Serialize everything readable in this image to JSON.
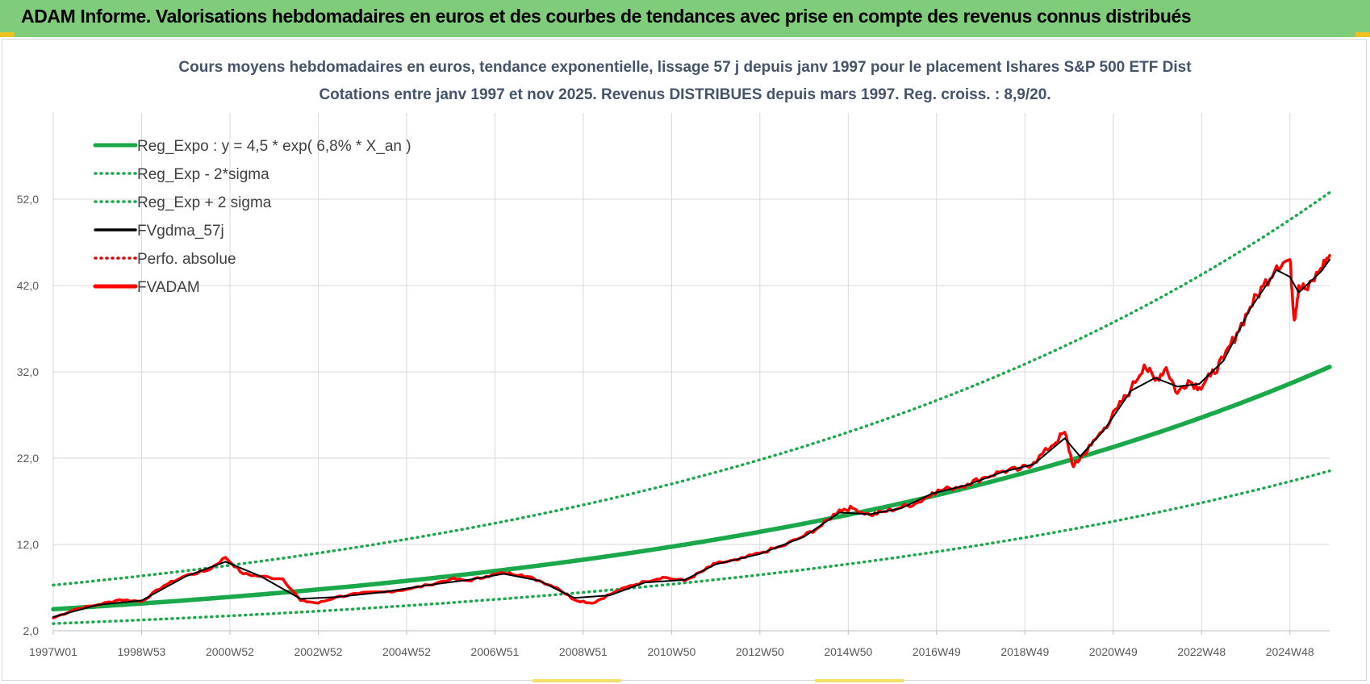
{
  "banner": {
    "title": "ADAM Informe. Valorisations hebdomadaires en euros et des courbes de tendances avec prise en compte des revenus connus distribués"
  },
  "colors": {
    "banner_bg": "#7fcd7a",
    "reg_expo": "#1aa84a",
    "sigma": "#1aa84a",
    "fvgdma": "#000000",
    "perfo": "#e00000",
    "fvadam": "#ff0000",
    "grid": "#d9d9d9"
  },
  "chart_data": {
    "type": "line",
    "title": [
      "Cours moyens hebdomadaires en euros, tendance exponentielle, lissage 57 j depuis janv 1997 pour le placement Ishares S&P 500 ETF Dist",
      "Cotations entre janv 1997 et nov 2025. Revenus DISTRIBUES depuis mars 1997. Reg. croiss. : 8,9/20."
    ],
    "xlabel": "",
    "ylabel": "",
    "ylim": [
      2.0,
      62.0
    ],
    "yticks": [
      "2,0",
      "12,0",
      "22,0",
      "32,0",
      "42,0",
      "52,0"
    ],
    "xticks": [
      "1997W01",
      "1998W53",
      "2000W52",
      "2002W52",
      "2004W52",
      "2006W51",
      "2008W51",
      "2010W50",
      "2012W50",
      "2014W50",
      "2016W49",
      "2018W49",
      "2020W49",
      "2022W48",
      "2024W48"
    ],
    "xtick_years": [
      1997.0,
      1999.0,
      2001.0,
      2003.0,
      2005.0,
      2007.0,
      2009.0,
      2011.0,
      2013.0,
      2015.0,
      2017.0,
      2019.0,
      2021.0,
      2023.0,
      2025.0
    ],
    "xlim": [
      1997.0,
      2025.9
    ],
    "grid": true,
    "legend_position": "top-left",
    "legend": [
      {
        "label": "Reg_Expo : y = 4,5 * exp( 6,8% *  X_an )",
        "style": "solid-thick",
        "color": "#1aa84a"
      },
      {
        "label": "Reg_Exp - 2*sigma",
        "style": "dotted",
        "color": "#1aa84a"
      },
      {
        "label": "Reg_Exp + 2 sigma",
        "style": "dotted",
        "color": "#1aa84a"
      },
      {
        "label": "FVgdma_57j",
        "style": "solid",
        "color": "#000000"
      },
      {
        "label": "Perfo. absolue",
        "style": "dotted",
        "color": "#e00000"
      },
      {
        "label": "FVADAM",
        "style": "solid-thick",
        "color": "#ff0000"
      }
    ],
    "series": [
      {
        "name": "Reg_Expo : y = 4,5 * exp( 6,8% *  X_an )",
        "x": [
          1997.0,
          2001.0,
          2005.0,
          2009.0,
          2013.0,
          2017.0,
          2021.0,
          2025.9
        ],
        "values": [
          4.5,
          5.9,
          7.8,
          10.2,
          13.4,
          17.6,
          23.2,
          32.5
        ]
      },
      {
        "name": "Reg_Exp - 2*sigma",
        "x": [
          1997.0,
          2001.0,
          2005.0,
          2009.0,
          2013.0,
          2017.0,
          2021.0,
          2025.9
        ],
        "values": [
          2.8,
          3.7,
          4.9,
          6.4,
          8.4,
          11.1,
          14.6,
          20.5
        ]
      },
      {
        "name": "Reg_Exp + 2 sigma",
        "x": [
          1997.0,
          2001.0,
          2005.0,
          2009.0,
          2013.0,
          2017.0,
          2021.0,
          2025.9
        ],
        "values": [
          7.3,
          9.5,
          12.5,
          16.5,
          21.7,
          28.5,
          37.5,
          52.7
        ]
      },
      {
        "name": "FVADAM",
        "x": [
          1997.0,
          1997.5,
          1998.0,
          1998.5,
          1999.0,
          1999.5,
          2000.0,
          2000.5,
          2000.9,
          2001.3,
          2001.7,
          2002.2,
          2002.6,
          2003.0,
          2003.4,
          2003.9,
          2004.5,
          2005.0,
          2005.5,
          2006.0,
          2006.4,
          2006.8,
          2007.2,
          2007.6,
          2008.0,
          2008.4,
          2008.8,
          2009.2,
          2009.6,
          2010.0,
          2010.4,
          2010.8,
          2011.3,
          2011.7,
          2012.0,
          2012.5,
          2013.0,
          2013.5,
          2014.0,
          2014.4,
          2014.8,
          2015.1,
          2015.5,
          2015.8,
          2016.2,
          2016.6,
          2016.9,
          2017.3,
          2017.7,
          2018.1,
          2018.5,
          2018.9,
          2019.2,
          2019.6,
          2019.9,
          2020.1,
          2020.25,
          2020.5,
          2020.8,
          2021.1,
          2021.4,
          2021.7,
          2021.95,
          2022.2,
          2022.45,
          2022.7,
          2022.95,
          2023.2,
          2023.5,
          2023.8,
          2024.1,
          2024.4,
          2024.7,
          2025.0,
          2025.1,
          2025.2,
          2025.4,
          2025.7,
          2025.9
        ],
        "values": [
          3.5,
          4.5,
          5.0,
          5.6,
          5.4,
          7.2,
          8.4,
          9.0,
          10.5,
          8.6,
          8.3,
          8.0,
          5.5,
          5.2,
          5.9,
          6.3,
          6.5,
          6.8,
          7.3,
          8.0,
          7.8,
          8.3,
          8.7,
          8.5,
          7.8,
          7.0,
          5.6,
          5.2,
          6.2,
          7.1,
          7.7,
          8.2,
          7.8,
          8.9,
          9.8,
          10.2,
          11.0,
          11.8,
          13.0,
          14.2,
          16.0,
          16.2,
          15.4,
          15.8,
          16.3,
          16.9,
          18.0,
          18.5,
          19.0,
          19.8,
          20.5,
          20.7,
          21.5,
          23.4,
          25.0,
          21.0,
          22.0,
          23.5,
          25.5,
          27.8,
          30.0,
          32.8,
          31.0,
          32.5,
          29.5,
          31.0,
          30.2,
          31.5,
          33.5,
          36.5,
          39.5,
          42.0,
          44.3,
          45.0,
          38.0,
          42.0,
          41.5,
          44.0,
          45.5
        ]
      },
      {
        "name": "FVgdma_57j",
        "x": [
          1997.0,
          1998.0,
          1999.0,
          2000.0,
          2000.9,
          2001.7,
          2002.6,
          2003.4,
          2004.5,
          2005.5,
          2006.4,
          2007.2,
          2008.0,
          2008.8,
          2009.6,
          2010.4,
          2011.3,
          2012.0,
          2013.0,
          2014.0,
          2014.8,
          2015.5,
          2016.2,
          2016.9,
          2017.7,
          2018.5,
          2019.2,
          2019.9,
          2020.25,
          2020.8,
          2021.4,
          2021.95,
          2022.45,
          2022.95,
          2023.5,
          2024.1,
          2024.7,
          2025.0,
          2025.2,
          2025.7,
          2025.9
        ],
        "values": [
          3.6,
          5.0,
          5.5,
          8.3,
          10.0,
          8.3,
          5.7,
          5.9,
          6.5,
          7.3,
          7.9,
          8.6,
          7.8,
          5.8,
          6.1,
          7.6,
          7.9,
          9.7,
          10.9,
          12.9,
          15.7,
          15.5,
          16.2,
          17.9,
          18.9,
          20.4,
          21.3,
          24.3,
          22.2,
          25.3,
          29.8,
          31.3,
          30.3,
          30.6,
          33.3,
          39.3,
          43.8,
          43.0,
          41.2,
          43.6,
          45.0
        ]
      }
    ]
  }
}
